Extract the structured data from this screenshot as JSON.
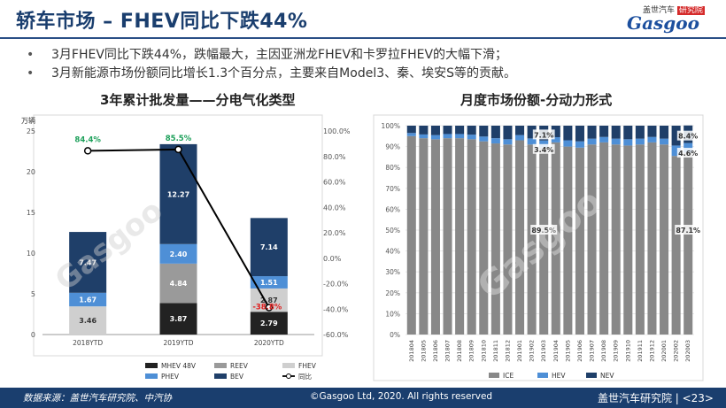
{
  "title": "轿车市场 – FHEV同比下跌44%",
  "logo": {
    "cn_prefix": "盖世汽车",
    "cn_badge": "研究院",
    "en": "Gasgoo"
  },
  "bullets": [
    "3月FHEV同比下跌44%，跌幅最大，主因亚洲龙FHEV和卡罗拉FHEV的大幅下滑；",
    "3月新能源市场份额同比增长1.3个百分点，主要来自Model3、秦、埃安S等的贡献。"
  ],
  "watermark": "Gasgoo 盖世汽车",
  "footer": {
    "source": "数据来源：盖世汽车研究院、中汽协",
    "copyright": "©Gasgoo Ltd, 2020. All rights reserved",
    "org": "盖世汽车研究院 | <23>"
  },
  "colors": {
    "MHEV 48V": "#222222",
    "REEV": "#9a9a9a",
    "FHEV": "#cfcfcf",
    "PHEV": "#4e8fd6",
    "BEV": "#1f3f69",
    "ICE": "#888888",
    "HEV": "#4e8fd6",
    "NEV": "#1f3f69"
  },
  "chart_data": [
    {
      "type": "bar",
      "stacked": true,
      "title": "3年累计批发量——分电气化类型",
      "ylabel": "万辆",
      "categories": [
        "2018YTD",
        "2019YTD",
        "2020YTD"
      ],
      "ylim": [
        0,
        25
      ],
      "yticks": [
        0,
        5,
        10,
        15,
        20,
        25
      ],
      "y2lim": [
        -60,
        100
      ],
      "y2ticks": [
        "-60.0%",
        "-40.0%",
        "-20.0%",
        "0.0%",
        "20.0%",
        "40.0%",
        "60.0%",
        "80.0%",
        "100.0%"
      ],
      "series": [
        {
          "name": "MHEV 48V",
          "values": [
            0,
            3.87,
            2.79
          ]
        },
        {
          "name": "REEV",
          "values": [
            0,
            4.84,
            0
          ]
        },
        {
          "name": "FHEV",
          "values": [
            3.46,
            0,
            2.87
          ]
        },
        {
          "name": "PHEV",
          "values": [
            1.67,
            2.4,
            1.51
          ]
        },
        {
          "name": "BEV",
          "values": [
            7.47,
            12.27,
            7.14
          ]
        }
      ],
      "labels": [
        [
          null,
          null,
          "3.46",
          "1.67",
          "7.47"
        ],
        [
          "3.87",
          "4.84",
          null,
          "2.40",
          "12.27"
        ],
        [
          "2.79",
          null,
          "2.87",
          "1.51",
          "7.14"
        ]
      ],
      "line": {
        "name": "同比",
        "values": [
          84.4,
          85.5,
          -38.8
        ],
        "labels": [
          "84.4%",
          "85.5%",
          "-38.8%"
        ]
      },
      "legend": [
        "MHEV 48V",
        "REEV",
        "FHEV",
        "PHEV",
        "BEV",
        "同比"
      ],
      "legend_position": "bottom"
    },
    {
      "type": "bar",
      "stacked": true,
      "percent": true,
      "title": "月度市场份额-分动力形式",
      "categories": [
        "201804",
        "201805",
        "201806",
        "201807",
        "201808",
        "201809",
        "201810",
        "201811",
        "201812",
        "201901",
        "201902",
        "201903",
        "201904",
        "201905",
        "201906",
        "201907",
        "201908",
        "201909",
        "201910",
        "201911",
        "201912",
        "202001",
        "202002",
        "202003"
      ],
      "yticks": [
        "0%",
        "10%",
        "20%",
        "30%",
        "40%",
        "50%",
        "60%",
        "70%",
        "80%",
        "90%",
        "100%"
      ],
      "series": [
        {
          "name": "ICE",
          "values": [
            95,
            94,
            93.5,
            94,
            94,
            93.5,
            92.5,
            91.5,
            91,
            93,
            91,
            89.5,
            92,
            90,
            89.5,
            91,
            92,
            91,
            90.5,
            91,
            92,
            91,
            85.5,
            87.1
          ]
        },
        {
          "name": "HEV",
          "values": [
            1.5,
            1.8,
            2,
            2,
            2,
            2.2,
            2.3,
            2.5,
            2.5,
            2.5,
            2.9,
            3.4,
            2.5,
            3,
            3,
            2.8,
            2.6,
            2.8,
            3,
            2.8,
            2.6,
            2.8,
            5,
            4.6
          ]
        },
        {
          "name": "NEV",
          "values": [
            3.5,
            4.2,
            4.5,
            4,
            4,
            4.3,
            5.2,
            6,
            6.5,
            4.5,
            6.1,
            7.1,
            5.5,
            7,
            7.5,
            6.2,
            5.4,
            6.2,
            6.5,
            6.2,
            5.4,
            6.2,
            9.5,
            8.4
          ]
        }
      ],
      "annotations": [
        {
          "series": "NEV",
          "category": "201903",
          "label": "7.1%"
        },
        {
          "series": "HEV",
          "category": "201903",
          "label": "3.4%"
        },
        {
          "series": "ICE",
          "category": "201903",
          "label": "89.5%"
        },
        {
          "series": "NEV",
          "category": "202003",
          "label": "8.4%"
        },
        {
          "series": "HEV",
          "category": "202003",
          "label": "4.6%"
        },
        {
          "series": "ICE",
          "category": "202003",
          "label": "87.1%"
        }
      ],
      "legend": [
        "ICE",
        "HEV",
        "NEV"
      ],
      "legend_position": "bottom"
    }
  ]
}
